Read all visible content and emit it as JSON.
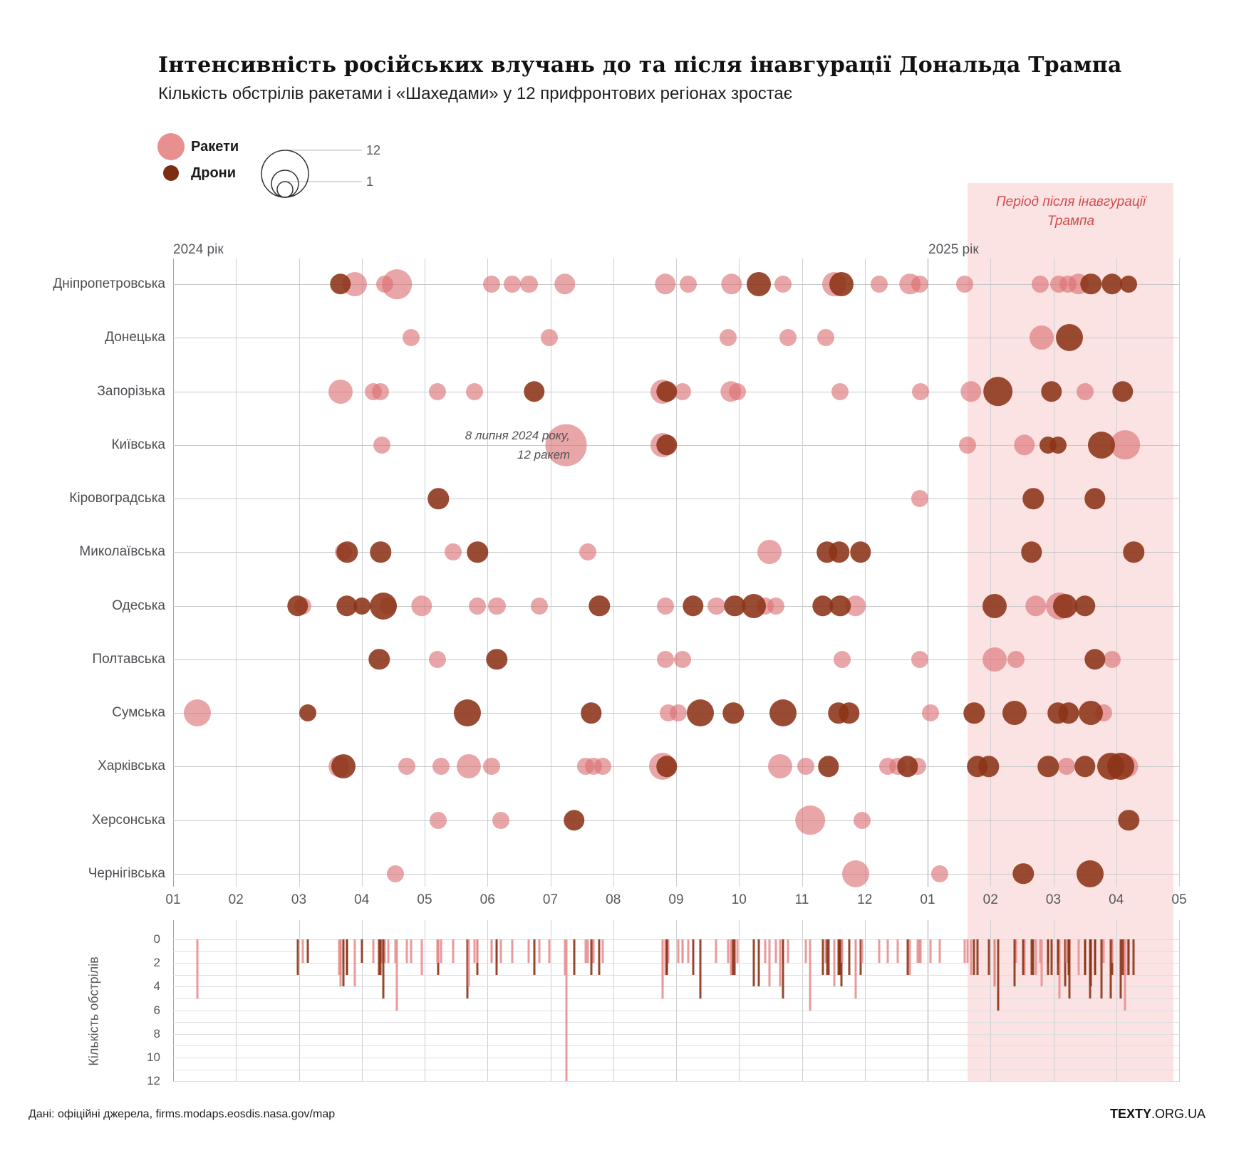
{
  "header": {
    "title": "Інтенсивність російських влучань до та після інавгурації Дональда Трампа",
    "subtitle": "Кількість обстрілів ракетами і «Шахедами» у 12 прифронтових регіонах зростає"
  },
  "legend": {
    "rockets_label": "Ракети",
    "drones_label": "Дрони",
    "size_max_label": "12",
    "size_min_label": "1"
  },
  "band": {
    "label_line1": "Період після інавгурації",
    "label_line2": "Трампа"
  },
  "year_labels": {
    "y2024": "2024 рік",
    "y2025": "2025 рік"
  },
  "annotation": {
    "line1": "8 липня 2024 року,",
    "line2": "12 ракет"
  },
  "footer": {
    "source": "Дані: офіційні джерела, firms.modaps.eosdis.nasa.gov/map",
    "brand_bold": "TEXTY",
    "brand_rest": ".ORG.UA"
  },
  "colors": {
    "rocket": "rgba(219,112,115,0.62)",
    "drone": "rgba(139,51,23,0.88)",
    "rocket_solid": "#e88f90",
    "drone_solid": "#8b3317",
    "band_fill": "#fbe3e3",
    "band_text": "#d14b4b"
  },
  "chart_data": {
    "type": "scatter",
    "title": "Інтенсивність російських влучань до та після інавгурації Дональда Трампа",
    "regions": [
      "Дніпропетровська",
      "Донецька",
      "Запорізька",
      "Київська",
      "Кіровоградська",
      "Миколаївська",
      "Одеська",
      "Полтавська",
      "Сумська",
      "Харківська",
      "Херсонська",
      "Чернігівська"
    ],
    "x_tick_labels": [
      "01",
      "02",
      "03",
      "04",
      "05",
      "06",
      "07",
      "08",
      "09",
      "10",
      "11",
      "12",
      "01",
      "02",
      "03",
      "04",
      "05"
    ],
    "x_axis_note": "months 01.2024 through 05.2025; month index 1..17",
    "highlight_band": {
      "from_month": 13.63,
      "to_month": 16.9,
      "meaning": "Період після інавгурації Трампа"
    },
    "size_scale": {
      "min": 1,
      "max": 12
    },
    "events_format": "[region_index, month_index, type(0=rocket,1=drone), strikes]",
    "events": [
      [
        0,
        3.66,
        1,
        3
      ],
      [
        0,
        3.89,
        0,
        4
      ],
      [
        0,
        4.36,
        0,
        2
      ],
      [
        0,
        4.56,
        0,
        6
      ],
      [
        0,
        6.07,
        0,
        2
      ],
      [
        0,
        6.39,
        0,
        2
      ],
      [
        0,
        6.66,
        0,
        2
      ],
      [
        0,
        7.23,
        0,
        3
      ],
      [
        0,
        8.83,
        0,
        3
      ],
      [
        0,
        9.19,
        0,
        2
      ],
      [
        0,
        9.88,
        0,
        3
      ],
      [
        0,
        10.32,
        1,
        4
      ],
      [
        0,
        10.7,
        0,
        2
      ],
      [
        0,
        11.51,
        0,
        4
      ],
      [
        0,
        11.63,
        1,
        4
      ],
      [
        0,
        12.23,
        0,
        2
      ],
      [
        0,
        12.72,
        0,
        3
      ],
      [
        0,
        12.88,
        0,
        2
      ],
      [
        0,
        13.59,
        0,
        2
      ],
      [
        0,
        14.79,
        0,
        2
      ],
      [
        0,
        15.08,
        0,
        2
      ],
      [
        0,
        15.23,
        0,
        2
      ],
      [
        0,
        15.4,
        0,
        3
      ],
      [
        0,
        15.6,
        1,
        3
      ],
      [
        0,
        15.93,
        1,
        3
      ],
      [
        0,
        16.19,
        1,
        2
      ],
      [
        1,
        4.79,
        0,
        2
      ],
      [
        1,
        6.98,
        0,
        2
      ],
      [
        1,
        9.83,
        0,
        2
      ],
      [
        1,
        10.78,
        0,
        2
      ],
      [
        1,
        11.38,
        0,
        2
      ],
      [
        1,
        14.81,
        0,
        4
      ],
      [
        1,
        15.25,
        1,
        5
      ],
      [
        2,
        3.66,
        0,
        4
      ],
      [
        2,
        4.18,
        0,
        2
      ],
      [
        2,
        4.3,
        0,
        2
      ],
      [
        2,
        5.2,
        0,
        2
      ],
      [
        2,
        5.79,
        0,
        2
      ],
      [
        2,
        6.74,
        1,
        3
      ],
      [
        2,
        8.78,
        0,
        4
      ],
      [
        2,
        8.85,
        1,
        3
      ],
      [
        2,
        9.1,
        0,
        2
      ],
      [
        2,
        9.87,
        0,
        3
      ],
      [
        2,
        9.97,
        0,
        2
      ],
      [
        2,
        11.61,
        0,
        2
      ],
      [
        2,
        12.89,
        0,
        2
      ],
      [
        2,
        13.69,
        0,
        3
      ],
      [
        2,
        14.12,
        1,
        6
      ],
      [
        2,
        14.97,
        1,
        3
      ],
      [
        2,
        15.5,
        0,
        2
      ],
      [
        2,
        16.1,
        1,
        3
      ],
      [
        3,
        4.32,
        0,
        2
      ],
      [
        3,
        7.25,
        0,
        12
      ],
      [
        3,
        8.78,
        0,
        4
      ],
      [
        3,
        8.85,
        1,
        3
      ],
      [
        3,
        13.63,
        0,
        2
      ],
      [
        3,
        14.54,
        0,
        3
      ],
      [
        3,
        14.92,
        1,
        2
      ],
      [
        3,
        15.07,
        1,
        2
      ],
      [
        3,
        15.77,
        1,
        5
      ],
      [
        3,
        16.14,
        0,
        6
      ],
      [
        4,
        5.22,
        1,
        3
      ],
      [
        4,
        12.87,
        0,
        2
      ],
      [
        4,
        14.68,
        1,
        3
      ],
      [
        4,
        15.66,
        1,
        3
      ],
      [
        5,
        3.71,
        0,
        2
      ],
      [
        5,
        3.77,
        1,
        3
      ],
      [
        5,
        4.3,
        1,
        3
      ],
      [
        5,
        5.45,
        0,
        2
      ],
      [
        5,
        5.84,
        1,
        3
      ],
      [
        5,
        7.59,
        0,
        2
      ],
      [
        5,
        10.49,
        0,
        4
      ],
      [
        5,
        11.4,
        1,
        3
      ],
      [
        5,
        11.59,
        1,
        3
      ],
      [
        5,
        11.93,
        1,
        3
      ],
      [
        5,
        14.65,
        1,
        3
      ],
      [
        5,
        16.28,
        1,
        3
      ],
      [
        6,
        2.98,
        1,
        3
      ],
      [
        6,
        3.06,
        0,
        2
      ],
      [
        6,
        3.76,
        1,
        3
      ],
      [
        6,
        4.0,
        1,
        2
      ],
      [
        6,
        4.34,
        1,
        5
      ],
      [
        6,
        4.42,
        0,
        2
      ],
      [
        6,
        4.95,
        0,
        3
      ],
      [
        6,
        5.84,
        0,
        2
      ],
      [
        6,
        6.15,
        0,
        2
      ],
      [
        6,
        6.82,
        0,
        2
      ],
      [
        6,
        7.78,
        1,
        3
      ],
      [
        6,
        8.83,
        0,
        2
      ],
      [
        6,
        9.27,
        1,
        3
      ],
      [
        6,
        9.64,
        0,
        2
      ],
      [
        6,
        9.93,
        1,
        3
      ],
      [
        6,
        10.23,
        1,
        4
      ],
      [
        6,
        10.42,
        0,
        2
      ],
      [
        6,
        10.59,
        0,
        2
      ],
      [
        6,
        11.33,
        1,
        3
      ],
      [
        6,
        11.61,
        1,
        3
      ],
      [
        6,
        11.85,
        0,
        3
      ],
      [
        6,
        14.07,
        1,
        4
      ],
      [
        6,
        14.72,
        0,
        3
      ],
      [
        6,
        15.1,
        0,
        5
      ],
      [
        6,
        15.19,
        1,
        4
      ],
      [
        6,
        15.5,
        1,
        3
      ],
      [
        7,
        4.28,
        1,
        3
      ],
      [
        7,
        5.2,
        0,
        2
      ],
      [
        7,
        6.15,
        1,
        3
      ],
      [
        7,
        8.83,
        0,
        2
      ],
      [
        7,
        9.1,
        0,
        2
      ],
      [
        7,
        11.64,
        0,
        2
      ],
      [
        7,
        12.87,
        0,
        2
      ],
      [
        7,
        14.07,
        0,
        4
      ],
      [
        7,
        14.41,
        0,
        2
      ],
      [
        7,
        15.66,
        1,
        3
      ],
      [
        7,
        15.93,
        0,
        2
      ],
      [
        8,
        1.39,
        0,
        5
      ],
      [
        8,
        3.14,
        1,
        2
      ],
      [
        8,
        5.68,
        1,
        5
      ],
      [
        8,
        7.65,
        1,
        3
      ],
      [
        8,
        8.87,
        0,
        2
      ],
      [
        8,
        9.03,
        0,
        2
      ],
      [
        8,
        9.38,
        1,
        5
      ],
      [
        8,
        9.91,
        1,
        3
      ],
      [
        8,
        10.7,
        1,
        5
      ],
      [
        8,
        11.58,
        1,
        3
      ],
      [
        8,
        11.75,
        1,
        3
      ],
      [
        8,
        13.05,
        0,
        2
      ],
      [
        8,
        13.74,
        1,
        3
      ],
      [
        8,
        14.38,
        1,
        4
      ],
      [
        8,
        15.07,
        1,
        3
      ],
      [
        8,
        15.24,
        1,
        3
      ],
      [
        8,
        15.6,
        1,
        4
      ],
      [
        8,
        15.8,
        0,
        2
      ],
      [
        9,
        3.64,
        0,
        3
      ],
      [
        9,
        3.71,
        1,
        4
      ],
      [
        9,
        4.72,
        0,
        2
      ],
      [
        9,
        5.26,
        0,
        2
      ],
      [
        9,
        5.7,
        0,
        4
      ],
      [
        9,
        6.07,
        0,
        2
      ],
      [
        9,
        7.56,
        0,
        2
      ],
      [
        9,
        7.69,
        0,
        2
      ],
      [
        9,
        7.83,
        0,
        2
      ],
      [
        9,
        8.78,
        0,
        5
      ],
      [
        9,
        8.85,
        1,
        3
      ],
      [
        9,
        10.66,
        0,
        4
      ],
      [
        9,
        11.06,
        0,
        2
      ],
      [
        9,
        11.42,
        1,
        3
      ],
      [
        9,
        12.36,
        0,
        2
      ],
      [
        9,
        12.52,
        0,
        2
      ],
      [
        9,
        12.68,
        1,
        3
      ],
      [
        9,
        12.84,
        0,
        2
      ],
      [
        9,
        13.79,
        1,
        3
      ],
      [
        9,
        13.97,
        1,
        3
      ],
      [
        9,
        14.92,
        1,
        3
      ],
      [
        9,
        15.21,
        0,
        2
      ],
      [
        9,
        15.5,
        1,
        3
      ],
      [
        9,
        15.91,
        1,
        5
      ],
      [
        9,
        16.07,
        1,
        5
      ],
      [
        9,
        16.18,
        0,
        3
      ],
      [
        10,
        5.22,
        0,
        2
      ],
      [
        10,
        6.21,
        0,
        2
      ],
      [
        10,
        7.38,
        1,
        3
      ],
      [
        10,
        11.13,
        0,
        6
      ],
      [
        10,
        11.96,
        0,
        2
      ],
      [
        10,
        16.2,
        1,
        3
      ],
      [
        11,
        4.53,
        0,
        2
      ],
      [
        11,
        11.85,
        0,
        5
      ],
      [
        11,
        13.19,
        0,
        2
      ],
      [
        11,
        14.52,
        1,
        3
      ],
      [
        11,
        15.58,
        1,
        5
      ]
    ],
    "bottom_chart": {
      "type": "bar",
      "ylabel": "Кількість обстрілів",
      "ytick_labels": [
        "0",
        "2",
        "4",
        "6",
        "8",
        "10",
        "12"
      ],
      "ylim": [
        0,
        12
      ],
      "note": "per-event strike counts drawn as downward bars on the same time axis; bar height = strikes, color = weapon type"
    }
  }
}
